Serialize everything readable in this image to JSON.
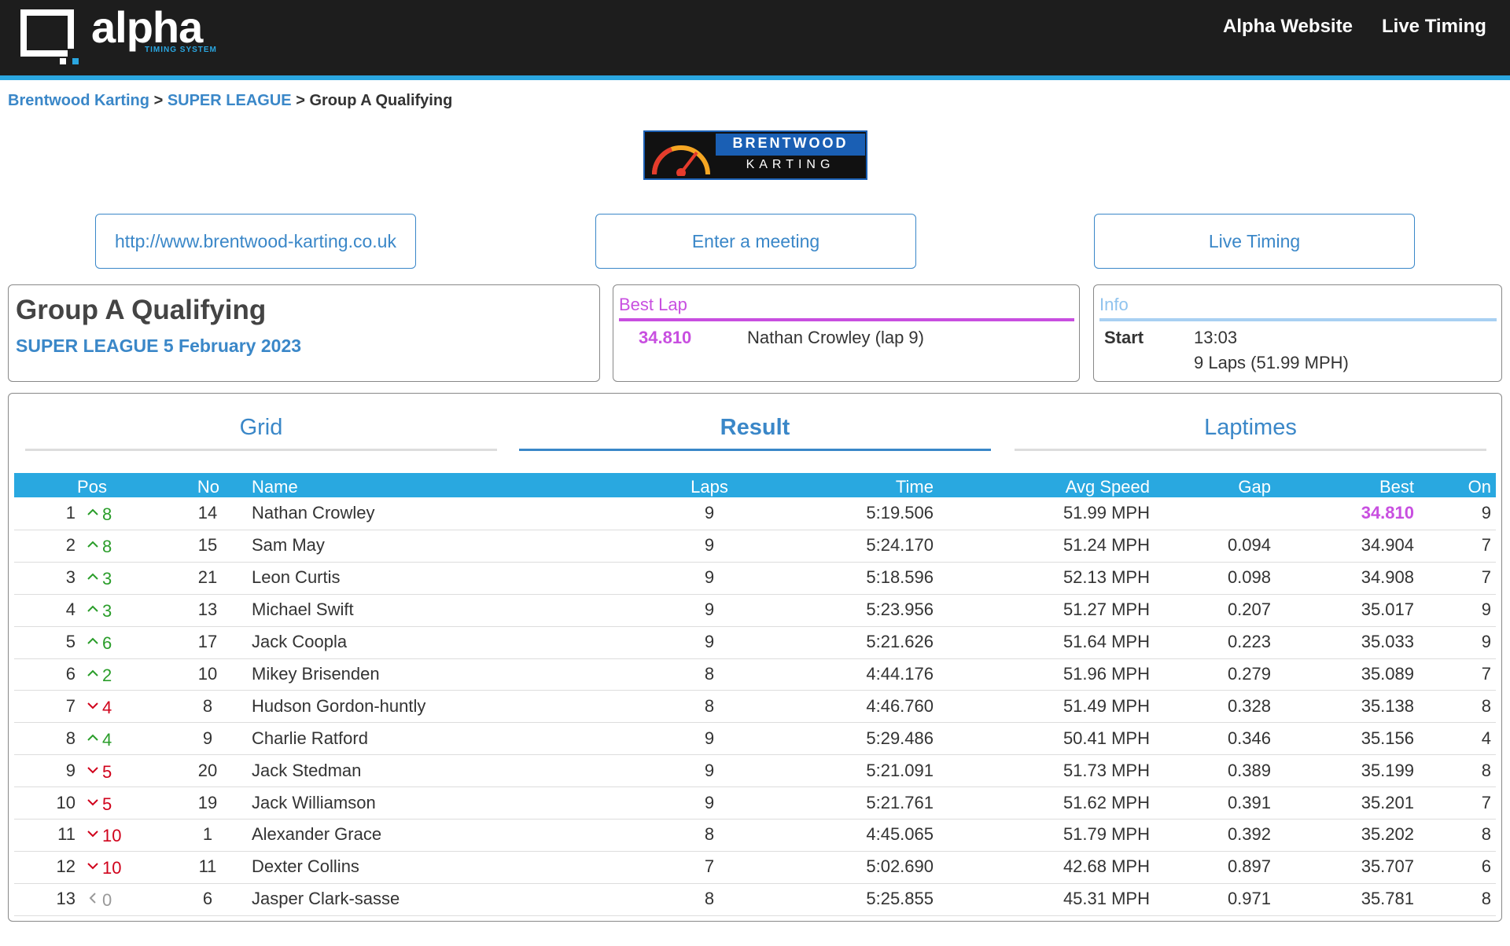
{
  "logo": {
    "name": "alpha",
    "tagline": "TIMING SYSTEM"
  },
  "nav": [
    "Alpha Website",
    "Live Timing"
  ],
  "breadcrumb": {
    "items": [
      "Brentwood Karting",
      "SUPER LEAGUE",
      "Group A Qualifying"
    ],
    "separator": ">"
  },
  "sponsor": [
    "BRENTWOOD",
    "KARTING"
  ],
  "buttons": [
    "http://www.brentwood-karting.co.uk",
    "Enter a meeting",
    "Live Timing"
  ],
  "session": {
    "title": "Group A Qualifying",
    "subtitle": "SUPER LEAGUE 5 February 2023"
  },
  "best_lap": {
    "heading": "Best Lap",
    "time": "34.810",
    "driver": "Nathan Crowley (lap 9)"
  },
  "info": {
    "heading": "Info",
    "label": "Start",
    "time": "13:03",
    "detail": "9 Laps (51.99 MPH)"
  },
  "tabs": {
    "items": [
      "Grid",
      "Result",
      "Laptimes"
    ],
    "active": 1
  },
  "table": {
    "columns": {
      "pos": "Pos",
      "no": "No",
      "name": "Name",
      "laps": "Laps",
      "time": "Time",
      "speed": "Avg Speed",
      "gap": "Gap",
      "best": "Best",
      "on": "On"
    },
    "rows": [
      {
        "pos": 1,
        "dir": "up",
        "change": 8,
        "no": 14,
        "name": "Nathan Crowley",
        "laps": 9,
        "time": "5:19.506",
        "speed": "51.99 MPH",
        "gap": null,
        "best": "34.810",
        "on": 9
      },
      {
        "pos": 2,
        "dir": "up",
        "change": 8,
        "no": 15,
        "name": "Sam May",
        "laps": 9,
        "time": "5:24.170",
        "speed": "51.24 MPH",
        "gap": "0.094",
        "best": "34.904",
        "on": 7
      },
      {
        "pos": 3,
        "dir": "up",
        "change": 3,
        "no": 21,
        "name": "Leon Curtis",
        "laps": 9,
        "time": "5:18.596",
        "speed": "52.13 MPH",
        "gap": "0.098",
        "best": "34.908",
        "on": 7
      },
      {
        "pos": 4,
        "dir": "up",
        "change": 3,
        "no": 13,
        "name": "Michael Swift",
        "laps": 9,
        "time": "5:23.956",
        "speed": "51.27 MPH",
        "gap": "0.207",
        "best": "35.017",
        "on": 9
      },
      {
        "pos": 5,
        "dir": "up",
        "change": 6,
        "no": 17,
        "name": "Jack Coopla",
        "laps": 9,
        "time": "5:21.626",
        "speed": "51.64 MPH",
        "gap": "0.223",
        "best": "35.033",
        "on": 9
      },
      {
        "pos": 6,
        "dir": "up",
        "change": 2,
        "no": 10,
        "name": "Mikey Brisenden",
        "laps": 8,
        "time": "4:44.176",
        "speed": "51.96 MPH",
        "gap": "0.279",
        "best": "35.089",
        "on": 7
      },
      {
        "pos": 7,
        "dir": "down",
        "change": 4,
        "no": 8,
        "name": "Hudson Gordon-huntly",
        "laps": 8,
        "time": "4:46.760",
        "speed": "51.49 MPH",
        "gap": "0.328",
        "best": "35.138",
        "on": 8
      },
      {
        "pos": 8,
        "dir": "up",
        "change": 4,
        "no": 9,
        "name": "Charlie Ratford",
        "laps": 9,
        "time": "5:29.486",
        "speed": "50.41 MPH",
        "gap": "0.346",
        "best": "35.156",
        "on": 4
      },
      {
        "pos": 9,
        "dir": "down",
        "change": 5,
        "no": 20,
        "name": "Jack Stedman",
        "laps": 9,
        "time": "5:21.091",
        "speed": "51.73 MPH",
        "gap": "0.389",
        "best": "35.199",
        "on": 8
      },
      {
        "pos": 10,
        "dir": "down",
        "change": 5,
        "no": 19,
        "name": "Jack Williamson",
        "laps": 9,
        "time": "5:21.761",
        "speed": "51.62 MPH",
        "gap": "0.391",
        "best": "35.201",
        "on": 7
      },
      {
        "pos": 11,
        "dir": "down",
        "change": 10,
        "no": 1,
        "name": "Alexander Grace",
        "laps": 8,
        "time": "4:45.065",
        "speed": "51.79 MPH",
        "gap": "0.392",
        "best": "35.202",
        "on": 8
      },
      {
        "pos": 12,
        "dir": "down",
        "change": 10,
        "no": 11,
        "name": "Dexter Collins",
        "laps": 7,
        "time": "5:02.690",
        "speed": "42.68 MPH",
        "gap": "0.897",
        "best": "35.707",
        "on": 6
      },
      {
        "pos": 13,
        "dir": "same",
        "change": 0,
        "no": 6,
        "name": "Jasper Clark-sasse",
        "laps": 8,
        "time": "5:25.855",
        "speed": "45.31 MPH",
        "gap": "0.971",
        "best": "35.781",
        "on": 8
      }
    ]
  }
}
